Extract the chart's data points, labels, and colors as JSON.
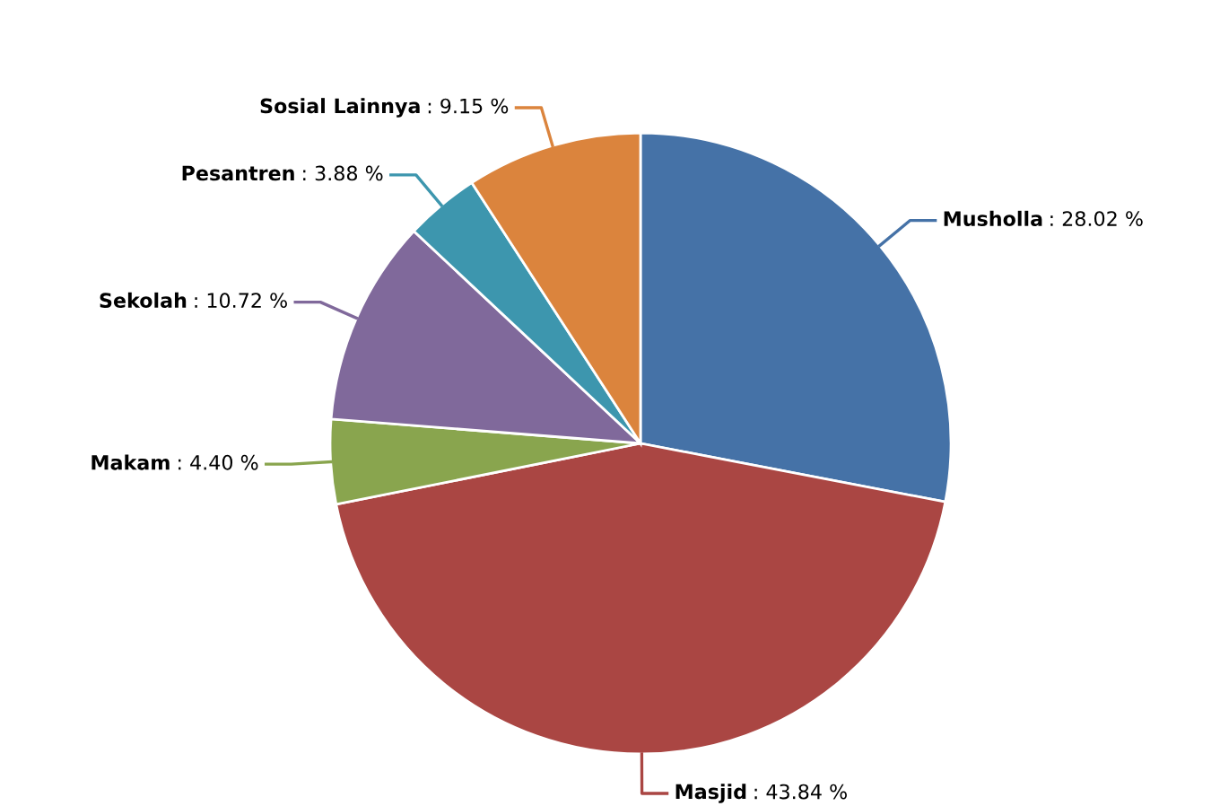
{
  "chart_data": {
    "type": "pie",
    "categories": [
      "Musholla",
      "Masjid",
      "Makam",
      "Sekolah",
      "Pesantren",
      "Sosial Lainnya"
    ],
    "values": [
      28.02,
      43.84,
      4.4,
      10.72,
      3.88,
      9.15
    ],
    "value_labels": [
      ": 28.02 %",
      ": 43.84 %",
      ": 4.40 %",
      ": 10.72 %",
      ": 3.88 %",
      ": 9.15 %"
    ],
    "colors": [
      "#4572a7",
      "#aa4643",
      "#89a54e",
      "#80699b",
      "#3d96ae",
      "#db843d"
    ],
    "legend": false
  }
}
